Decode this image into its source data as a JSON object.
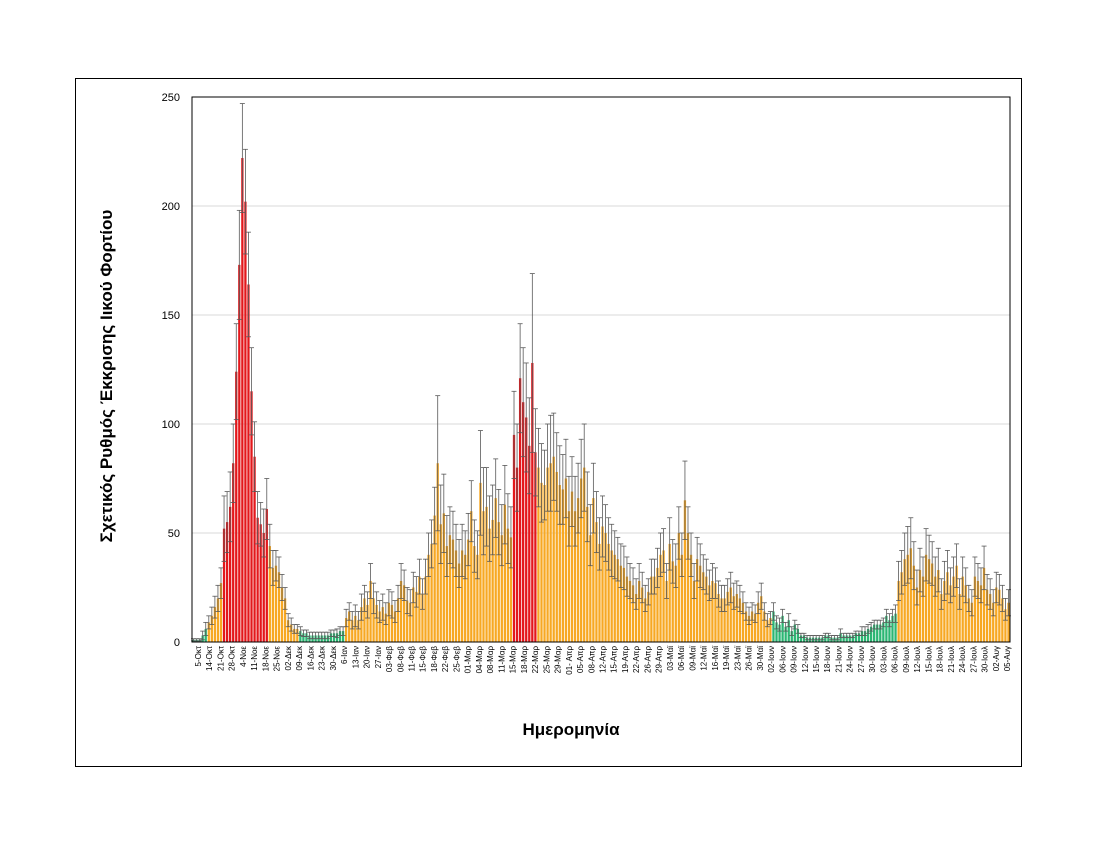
{
  "chart_data": {
    "type": "bar",
    "title": "",
    "xlabel": "Ημερομηνία",
    "ylabel": "Σχετικός Ρυθμός Έκκρισης Ιικού Φορτίου",
    "ylim": [
      0,
      250
    ],
    "yticks": [
      0,
      50,
      100,
      150,
      200,
      250
    ],
    "grid": true,
    "legend": "none",
    "error_bars": true,
    "colors": {
      "low": "#2bb673",
      "medium": "#f7a823",
      "high": "#e3171b",
      "error": "#595959",
      "grid": "#d9d9d9"
    },
    "xtick_labels": [
      "5-Οκτ",
      "14-Οκτ",
      "21-Οκτ",
      "28-Οκτ",
      "4-Νοε",
      "11-Νοε",
      "18-Νοε",
      "25-Νοε",
      "02-Δεκ",
      "09-Δεκ",
      "16-Δεκ",
      "23-Δεκ",
      "30-Δεκ",
      "6-Ιαν",
      "13-Ιαν",
      "20-Ιαν",
      "27-Ιαν",
      "03-Φεβ",
      "08-Φεβ",
      "11-Φεβ",
      "15-Φεβ",
      "18-Φεβ",
      "22-Φεβ",
      "25-Φεβ",
      "01-Μαρ",
      "04-Μαρ",
      "08-Μαρ",
      "11-Μαρ",
      "15-Μαρ",
      "18-Μαρ",
      "22-Μαρ",
      "25-Μαρ",
      "29-Μαρ",
      "01- Απρ",
      "05-Απρ",
      "08-Απρ",
      "12-Απρ",
      "15-Απρ",
      "19-Απρ",
      "22-Απρ",
      "26-Απρ",
      "29-Απρ",
      "03-Μαϊ",
      "06-Μαϊ",
      "09-Μαϊ",
      "12-Μαϊ",
      "16-Μαϊ",
      "19-Μαϊ",
      "23-Μαϊ",
      "26-Μαϊ",
      "30-Μαϊ",
      "02-Ιουν",
      "06-Ιουν",
      "09-Ιουν",
      "12-Ιουν",
      "15-Ιουν",
      "18-Ιουν",
      "21-Ιουν",
      "24-Ιουν",
      "27-Ιουν",
      "30-Ιουν",
      "03-Ιουλ",
      "06-Ιουλ",
      "09-Ιουλ",
      "12-Ιουλ",
      "15-Ιουλ",
      "18-Ιουλ",
      "21-Ιουλ",
      "24-Ιουλ",
      "27-Ιουλ",
      "30-Ιουλ",
      "02-Αυγ",
      "05-Αυγ"
    ],
    "values": [
      1,
      1,
      1,
      3,
      6,
      9,
      12,
      16,
      20,
      27,
      52,
      55,
      62,
      82,
      124,
      173,
      222,
      202,
      164,
      115,
      85,
      57,
      54,
      50,
      61,
      44,
      34,
      35,
      32,
      25,
      20,
      10,
      8,
      6,
      6,
      5,
      4,
      4,
      3,
      3,
      3,
      3,
      3,
      3,
      3,
      4,
      4,
      4,
      5,
      5,
      11,
      14,
      10,
      12,
      10,
      16,
      20,
      17,
      28,
      20,
      17,
      14,
      16,
      13,
      18,
      17,
      14,
      20,
      28,
      26,
      19,
      18,
      25,
      23,
      30,
      22,
      30,
      40,
      45,
      58,
      82,
      54,
      59,
      44,
      49,
      47,
      42,
      36,
      42,
      40,
      47,
      60,
      44,
      40,
      73,
      60,
      62,
      52,
      56,
      66,
      55,
      49,
      63,
      52,
      48,
      95,
      80,
      121,
      110,
      103,
      90,
      128,
      87,
      80,
      73,
      72,
      80,
      82,
      85,
      78,
      72,
      70,
      75,
      60,
      69,
      60,
      66,
      75,
      80,
      62,
      49,
      66,
      55,
      45,
      53,
      50,
      45,
      42,
      40,
      38,
      35,
      34,
      30,
      28,
      26,
      22,
      28,
      25,
      20,
      23,
      30,
      30,
      34,
      40,
      42,
      28,
      45,
      37,
      35,
      50,
      40,
      65,
      50,
      40,
      28,
      38,
      35,
      32,
      30,
      26,
      28,
      27,
      22,
      20,
      20,
      23,
      25,
      21,
      22,
      20,
      18,
      14,
      12,
      14,
      13,
      18,
      21,
      14,
      10,
      11,
      14,
      9,
      8,
      12,
      7,
      10,
      5,
      8,
      6,
      3,
      3,
      2,
      2,
      2,
      2,
      2,
      2,
      3,
      3,
      2,
      2,
      2,
      4,
      3,
      3,
      3,
      3,
      4,
      4,
      5,
      5,
      6,
      7,
      8,
      8,
      8,
      9,
      12,
      10,
      12,
      13,
      28,
      32,
      38,
      40,
      43,
      35,
      25,
      33,
      30,
      40,
      38,
      36,
      30,
      33,
      22,
      28,
      32,
      26,
      30,
      35,
      22,
      30,
      26,
      20,
      18,
      30,
      28,
      26,
      34,
      24,
      22,
      18,
      25,
      24,
      20,
      15,
      18
    ],
    "errors": [
      0.5,
      0.5,
      0.5,
      2,
      3,
      3,
      4,
      5,
      6,
      7,
      15,
      14,
      16,
      18,
      22,
      25,
      25,
      24,
      24,
      20,
      16,
      12,
      10,
      11,
      14,
      10,
      8,
      7,
      7,
      6,
      5,
      3,
      3,
      2,
      2,
      2,
      1.5,
      1.5,
      1.5,
      1.5,
      1.5,
      1.5,
      1.5,
      1.5,
      1.5,
      1.5,
      1.5,
      2,
      2,
      2,
      4,
      4,
      4,
      5,
      4,
      6,
      6,
      6,
      8,
      7,
      6,
      5,
      6,
      5,
      6,
      6,
      5,
      6,
      8,
      7,
      6,
      6,
      7,
      7,
      8,
      7,
      8,
      10,
      11,
      13,
      31,
      18,
      18,
      14,
      13,
      13,
      12,
      11,
      12,
      11,
      12,
      14,
      12,
      11,
      24,
      20,
      18,
      15,
      16,
      18,
      15,
      14,
      18,
      16,
      14,
      20,
      20,
      25,
      25,
      25,
      22,
      41,
      20,
      18,
      18,
      16,
      20,
      22,
      20,
      18,
      18,
      16,
      18,
      16,
      16,
      16,
      16,
      18,
      20,
      16,
      14,
      16,
      14,
      12,
      14,
      13,
      12,
      12,
      11,
      10,
      10,
      10,
      9,
      8,
      8,
      7,
      8,
      7,
      6,
      6,
      8,
      8,
      9,
      10,
      10,
      8,
      12,
      10,
      10,
      12,
      10,
      18,
      12,
      10,
      8,
      10,
      10,
      8,
      8,
      7,
      8,
      7,
      6,
      6,
      6,
      6,
      7,
      6,
      6,
      6,
      5,
      4,
      4,
      4,
      4,
      5,
      6,
      4,
      3,
      3,
      4,
      3,
      3,
      3,
      2,
      3,
      2,
      2,
      2,
      1,
      1,
      1,
      1,
      1,
      1,
      1,
      1,
      1,
      1,
      1,
      1,
      1,
      2,
      1,
      1,
      1,
      1,
      1,
      1,
      2,
      2,
      2,
      2,
      2,
      2,
      2,
      2,
      3,
      3,
      3,
      4,
      9,
      10,
      12,
      13,
      14,
      11,
      8,
      10,
      9,
      12,
      11,
      10,
      9,
      10,
      7,
      9,
      10,
      8,
      9,
      10,
      7,
      9,
      8,
      6,
      6,
      9,
      8,
      8,
      10,
      7,
      7,
      6,
      7,
      7,
      6,
      5,
      6
    ],
    "color_levels": [
      "low",
      "low",
      "low",
      "low",
      "low",
      "medium",
      "medium",
      "medium",
      "medium",
      "medium",
      "high",
      "high",
      "high",
      "high",
      "high",
      "high",
      "high",
      "high",
      "high",
      "high",
      "high",
      "high",
      "high",
      "high",
      "high",
      "medium",
      "medium",
      "medium",
      "medium",
      "medium",
      "medium",
      "medium",
      "medium",
      "medium",
      "medium",
      "low",
      "low",
      "low",
      "low",
      "low",
      "low",
      "low",
      "low",
      "low",
      "low",
      "low",
      "low",
      "low",
      "low",
      "low",
      "medium",
      "medium",
      "medium",
      "medium",
      "medium",
      "medium",
      "medium",
      "medium",
      "medium",
      "medium",
      "medium",
      "medium",
      "medium",
      "medium",
      "medium",
      "medium",
      "medium",
      "medium",
      "medium",
      "medium",
      "medium",
      "medium",
      "medium",
      "medium",
      "medium",
      "medium",
      "medium",
      "medium",
      "medium",
      "medium",
      "medium",
      "medium",
      "medium",
      "medium",
      "medium",
      "medium",
      "medium",
      "medium",
      "medium",
      "medium",
      "medium",
      "medium",
      "medium",
      "medium",
      "medium",
      "medium",
      "medium",
      "medium",
      "medium",
      "medium",
      "medium",
      "medium",
      "medium",
      "medium",
      "medium",
      "high",
      "high",
      "high",
      "high",
      "high",
      "high",
      "high",
      "high",
      "medium",
      "medium",
      "medium",
      "medium",
      "medium",
      "medium",
      "medium",
      "medium",
      "medium",
      "medium",
      "medium",
      "medium",
      "medium",
      "medium",
      "medium",
      "medium",
      "medium",
      "medium",
      "medium",
      "medium",
      "medium",
      "medium",
      "medium",
      "medium",
      "medium",
      "medium",
      "medium",
      "medium",
      "medium",
      "medium",
      "medium",
      "medium",
      "medium",
      "medium",
      "medium",
      "medium",
      "medium",
      "medium",
      "medium",
      "medium",
      "medium",
      "medium",
      "medium",
      "medium",
      "medium",
      "medium",
      "medium",
      "medium",
      "medium",
      "medium",
      "medium",
      "medium",
      "medium",
      "medium",
      "medium",
      "medium",
      "medium",
      "medium",
      "medium",
      "medium",
      "medium",
      "medium",
      "medium",
      "medium",
      "medium",
      "medium",
      "medium",
      "medium",
      "medium",
      "medium",
      "medium",
      "medium",
      "medium",
      "medium",
      "medium",
      "medium",
      "medium",
      "low",
      "low",
      "low",
      "low",
      "low",
      "low",
      "low",
      "low",
      "low",
      "low",
      "low",
      "low",
      "low",
      "low",
      "low",
      "low",
      "low",
      "low",
      "low",
      "low",
      "low",
      "low",
      "low",
      "low",
      "low",
      "low",
      "low",
      "low",
      "low",
      "low",
      "low",
      "low",
      "low",
      "low",
      "low",
      "low",
      "low",
      "low",
      "low",
      "low",
      "low",
      "medium",
      "medium",
      "medium",
      "medium",
      "medium",
      "medium",
      "medium",
      "medium",
      "medium",
      "medium",
      "medium",
      "medium",
      "medium",
      "medium",
      "medium",
      "medium",
      "medium",
      "medium",
      "medium",
      "medium",
      "medium",
      "medium",
      "medium",
      "medium",
      "medium",
      "medium",
      "medium",
      "medium",
      "medium",
      "medium",
      "medium",
      "medium",
      "medium",
      "medium",
      "medium",
      "medium",
      "medium"
    ]
  }
}
